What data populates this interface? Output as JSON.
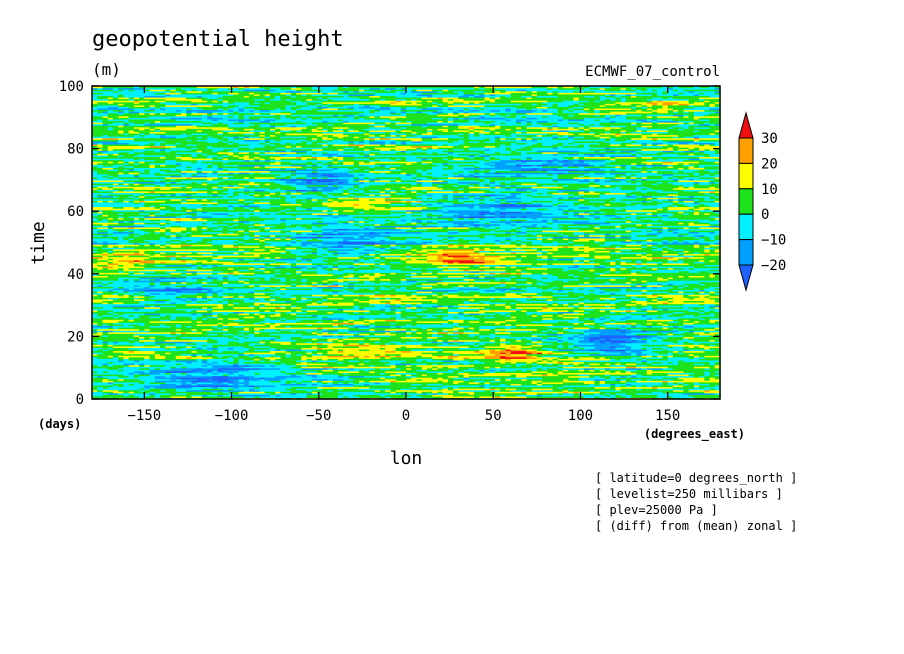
{
  "chart_data": {
    "type": "heatmap",
    "title": "geopotential height",
    "units": "(m)",
    "dataset": "ECMWF_07_control",
    "xlabel": "lon",
    "xunits": "(degrees_east)",
    "ylabel": "time",
    "yunits": "(days)",
    "xlim": [
      -180,
      180
    ],
    "ylim": [
      0,
      100
    ],
    "xticks": [
      -150,
      -100,
      -50,
      0,
      50,
      100,
      150
    ],
    "yticks": [
      0,
      20,
      40,
      60,
      80,
      100
    ],
    "colorbar": {
      "levels": [
        -20,
        -10,
        0,
        10,
        20,
        30
      ],
      "colors": [
        "#1f63ff",
        "#00a0ff",
        "#00f0ff",
        "#1ce31c",
        "#ffff00",
        "#ffa000",
        "#f01010"
      ]
    },
    "features": [
      {
        "lon": -110,
        "time": 7,
        "lon_width": 55,
        "time_width": 5,
        "amplitude": -22
      },
      {
        "lon": 118,
        "time": 19,
        "lon_width": 22,
        "time_width": 4,
        "amplitude": -24
      },
      {
        "lon": -50,
        "time": 70,
        "lon_width": 20,
        "time_width": 4,
        "amplitude": -20
      },
      {
        "lon": -40,
        "time": 50,
        "lon_width": 30,
        "time_width": 6,
        "amplitude": -14
      },
      {
        "lon": 50,
        "time": 60,
        "lon_width": 45,
        "time_width": 6,
        "amplitude": -15
      },
      {
        "lon": 80,
        "time": 75,
        "lon_width": 40,
        "time_width": 5,
        "amplitude": -13
      },
      {
        "lon": -140,
        "time": 35,
        "lon_width": 30,
        "time_width": 6,
        "amplitude": -12
      },
      {
        "lon": 30,
        "time": 45,
        "lon_width": 20,
        "time_width": 3,
        "amplitude": 24
      },
      {
        "lon": 60,
        "time": 15,
        "lon_width": 18,
        "time_width": 3,
        "amplitude": 24
      },
      {
        "lon": -30,
        "time": 15,
        "lon_width": 25,
        "time_width": 3,
        "amplitude": 18
      },
      {
        "lon": -160,
        "time": 43,
        "lon_width": 20,
        "time_width": 3,
        "amplitude": 16
      },
      {
        "lon": -20,
        "time": 63,
        "lon_width": 25,
        "time_width": 2,
        "amplitude": 18
      },
      {
        "lon": 140,
        "time": 93,
        "lon_width": 25,
        "time_width": 2,
        "amplitude": 16
      }
    ]
  },
  "annotations": [
    "[ latitude=0 degrees_north ]",
    "[ levelist=250 millibars ]",
    "[ plev=25000 Pa ]",
    "[ (diff) from (mean) zonal ]"
  ]
}
